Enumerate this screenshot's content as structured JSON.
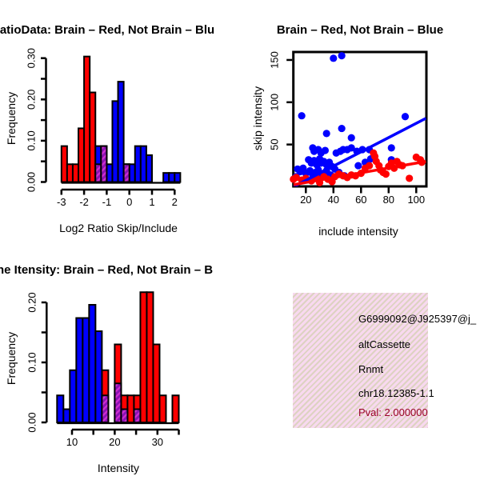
{
  "figure": {
    "background": "#ffffff"
  },
  "colors": {
    "red": "#ff0000",
    "blue": "#0000ff",
    "axis_black": "#000000",
    "overlap_base": "#8a12b4",
    "overlap_stripe": "#d02ed0",
    "pval_red": "#9b0028",
    "info_bg_pink": "#f8d9ef",
    "info_bg_tan": "#ddd2c2"
  },
  "chart_data": [
    {
      "id": "log2ratio_hist",
      "type": "bar",
      "title": "RatioData: Brain – Red, Not Brain – Blu",
      "xlabel": "Log2 Ratio Skip/Include",
      "ylabel": "Frequency",
      "bin_width": 0.25,
      "xlim": [
        -3,
        2.25
      ],
      "ylim": [
        0,
        0.3
      ],
      "x_ticks": [
        [
          -3,
          "-3"
        ],
        [
          -2,
          "-2"
        ],
        [
          -1,
          "-1"
        ],
        [
          0,
          "0"
        ],
        [
          1,
          "1"
        ],
        [
          2,
          "2"
        ]
      ],
      "y_ticks": [
        [
          0,
          "0.00"
        ],
        [
          0.05,
          ""
        ],
        [
          0.1,
          "0.10"
        ],
        [
          0.15,
          ""
        ],
        [
          0.2,
          "0.20"
        ],
        [
          0.25,
          ""
        ],
        [
          0.3,
          "0.30"
        ]
      ],
      "series": [
        {
          "name": "brain-red",
          "color": "red",
          "bars": [
            [
              -3,
              0.087
            ],
            [
              -2.75,
              0.043
            ],
            [
              -2.5,
              0.043
            ],
            [
              -2.25,
              0.13
            ],
            [
              -2,
              0.304
            ],
            [
              -1.75,
              0.217
            ],
            [
              -1.5,
              0.043
            ],
            [
              -1.25,
              0.087
            ],
            [
              -0.25,
              0.043
            ]
          ]
        },
        {
          "name": "not-brain-blue",
          "color": "blue",
          "bars": [
            [
              -1.5,
              0.087
            ],
            [
              -1.25,
              0.087
            ],
            [
              -1,
              0.043
            ],
            [
              -0.75,
              0.196
            ],
            [
              -0.5,
              0.243
            ],
            [
              -0.25,
              0.043
            ],
            [
              0,
              0.043
            ],
            [
              0.25,
              0.087
            ],
            [
              0.5,
              0.087
            ],
            [
              0.75,
              0.065
            ],
            [
              1.5,
              0.022
            ],
            [
              1.75,
              0.022
            ],
            [
              2,
              0.022
            ]
          ]
        },
        {
          "name": "overlap-hatched",
          "color": "overlap",
          "bars": [
            [
              -1.5,
              0.043
            ],
            [
              -1.25,
              0.087
            ],
            [
              -0.25,
              0.043
            ]
          ]
        }
      ]
    },
    {
      "id": "intensity_scatter",
      "type": "scatter",
      "title": "Brain – Red, Not Brain – Blue",
      "xlabel": "include intensity",
      "ylabel": "skip intensity",
      "xlim": [
        11,
        107
      ],
      "ylim": [
        0,
        158
      ],
      "x_ticks": [
        [
          20,
          "20"
        ],
        [
          40,
          "40"
        ],
        [
          60,
          "60"
        ],
        [
          80,
          "80"
        ],
        [
          100,
          "100"
        ]
      ],
      "y_ticks": [
        [
          50,
          "50"
        ],
        [
          100,
          "100"
        ],
        [
          150,
          "150"
        ]
      ],
      "series": [
        {
          "name": "not-brain-blue",
          "color": "blue",
          "fit_line": [
            [
              11,
              0
            ],
            [
              107,
              81
            ]
          ],
          "points": [
            [
              40,
              152
            ],
            [
              46,
              155
            ],
            [
              17,
              84
            ],
            [
              92,
              83
            ],
            [
              35,
              63
            ],
            [
              46,
              69
            ],
            [
              53,
              58
            ],
            [
              25,
              46
            ],
            [
              26,
              42
            ],
            [
              29,
              44
            ],
            [
              31,
              40
            ],
            [
              34,
              43
            ],
            [
              42,
              40
            ],
            [
              45,
              42
            ],
            [
              47,
              44
            ],
            [
              50,
              44
            ],
            [
              53,
              46
            ],
            [
              57,
              42
            ],
            [
              61,
              44
            ],
            [
              66,
              44
            ],
            [
              82,
              46
            ],
            [
              22,
              32
            ],
            [
              24,
              28
            ],
            [
              26,
              31
            ],
            [
              28,
              26
            ],
            [
              30,
              33
            ],
            [
              31,
              28
            ],
            [
              33,
              30
            ],
            [
              35,
              26
            ],
            [
              37,
              29
            ],
            [
              39,
              24
            ],
            [
              58,
              25
            ],
            [
              63,
              29
            ],
            [
              67,
              33
            ],
            [
              82,
              32
            ],
            [
              14,
              21
            ],
            [
              16,
              18
            ],
            [
              18,
              22
            ],
            [
              20,
              16
            ],
            [
              23,
              19
            ],
            [
              25,
              14
            ],
            [
              27,
              17
            ],
            [
              29,
              20
            ],
            [
              31,
              13
            ],
            [
              33,
              16
            ],
            [
              35,
              19
            ],
            [
              38,
              14
            ],
            [
              41,
              21
            ],
            [
              44,
              17
            ],
            [
              48,
              13
            ],
            [
              13,
              12
            ]
          ]
        },
        {
          "name": "brain-red",
          "color": "red",
          "fit_line": [
            [
              11,
              2.5
            ],
            [
              107,
              30
            ]
          ],
          "points": [
            [
              11,
              9
            ],
            [
              13,
              11
            ],
            [
              17,
              8
            ],
            [
              20,
              10
            ],
            [
              24,
              7
            ],
            [
              28,
              10
            ],
            [
              30,
              5
            ],
            [
              33,
              12
            ],
            [
              36,
              9
            ],
            [
              39,
              6
            ],
            [
              41,
              12
            ],
            [
              44,
              15
            ],
            [
              47,
              13
            ],
            [
              50,
              11
            ],
            [
              53,
              14
            ],
            [
              56,
              13
            ],
            [
              60,
              16
            ],
            [
              63,
              22
            ],
            [
              66,
              25
            ],
            [
              69,
              40
            ],
            [
              70,
              36
            ],
            [
              71,
              30
            ],
            [
              73,
              25
            ],
            [
              74,
              20
            ],
            [
              76,
              17
            ],
            [
              78,
              15
            ],
            [
              80,
              24
            ],
            [
              82,
              28
            ],
            [
              84,
              22
            ],
            [
              86,
              30
            ],
            [
              88,
              26
            ],
            [
              90,
              25
            ],
            [
              95,
              10
            ],
            [
              100,
              35
            ],
            [
              103,
              32
            ],
            [
              104,
              29
            ]
          ]
        }
      ]
    },
    {
      "id": "intensity_hist",
      "type": "bar",
      "title": "ne Itensity: Brain – Red, Not Brain – B",
      "xlabel": "Intensity",
      "ylabel": "Frequency",
      "bin_width": 1.5,
      "xlim": [
        6.5,
        35
      ],
      "ylim": [
        0,
        0.2
      ],
      "x_ticks": [
        [
          10,
          "10"
        ],
        [
          15,
          ""
        ],
        [
          20,
          "20"
        ],
        [
          25,
          ""
        ],
        [
          30,
          "30"
        ],
        [
          35,
          ""
        ]
      ],
      "y_ticks": [
        [
          0,
          "0.00"
        ],
        [
          0.05,
          ""
        ],
        [
          0.1,
          "0.10"
        ],
        [
          0.15,
          ""
        ],
        [
          0.2,
          "0.20"
        ]
      ],
      "series": [
        {
          "name": "brain-red",
          "color": "red",
          "bars": [
            [
              17,
              0.087
            ],
            [
              20,
              0.13
            ],
            [
              21.5,
              0.045
            ],
            [
              23,
              0.045
            ],
            [
              24.5,
              0.045
            ],
            [
              26,
              0.217
            ],
            [
              27.5,
              0.217
            ],
            [
              29,
              0.13
            ],
            [
              30.5,
              0.045
            ],
            [
              33.5,
              0.045
            ]
          ]
        },
        {
          "name": "not-brain-blue",
          "color": "blue",
          "bars": [
            [
              6.5,
              0.045
            ],
            [
              8,
              0.022
            ],
            [
              9.5,
              0.087
            ],
            [
              11,
              0.174
            ],
            [
              12.5,
              0.174
            ],
            [
              14,
              0.196
            ],
            [
              15.5,
              0.152
            ]
          ]
        },
        {
          "name": "overlap-hatched",
          "color": "overlap",
          "bars": [
            [
              17,
              0.045
            ],
            [
              20,
              0.065
            ],
            [
              21.5,
              0.022
            ],
            [
              24.5,
              0.022
            ]
          ]
        }
      ]
    }
  ],
  "info_box": {
    "lines": [
      "G6999092@J925397@j_",
      "altCassette",
      "Rnmt",
      "chr18.12385-1.1",
      "Pval: 2.000000"
    ]
  }
}
